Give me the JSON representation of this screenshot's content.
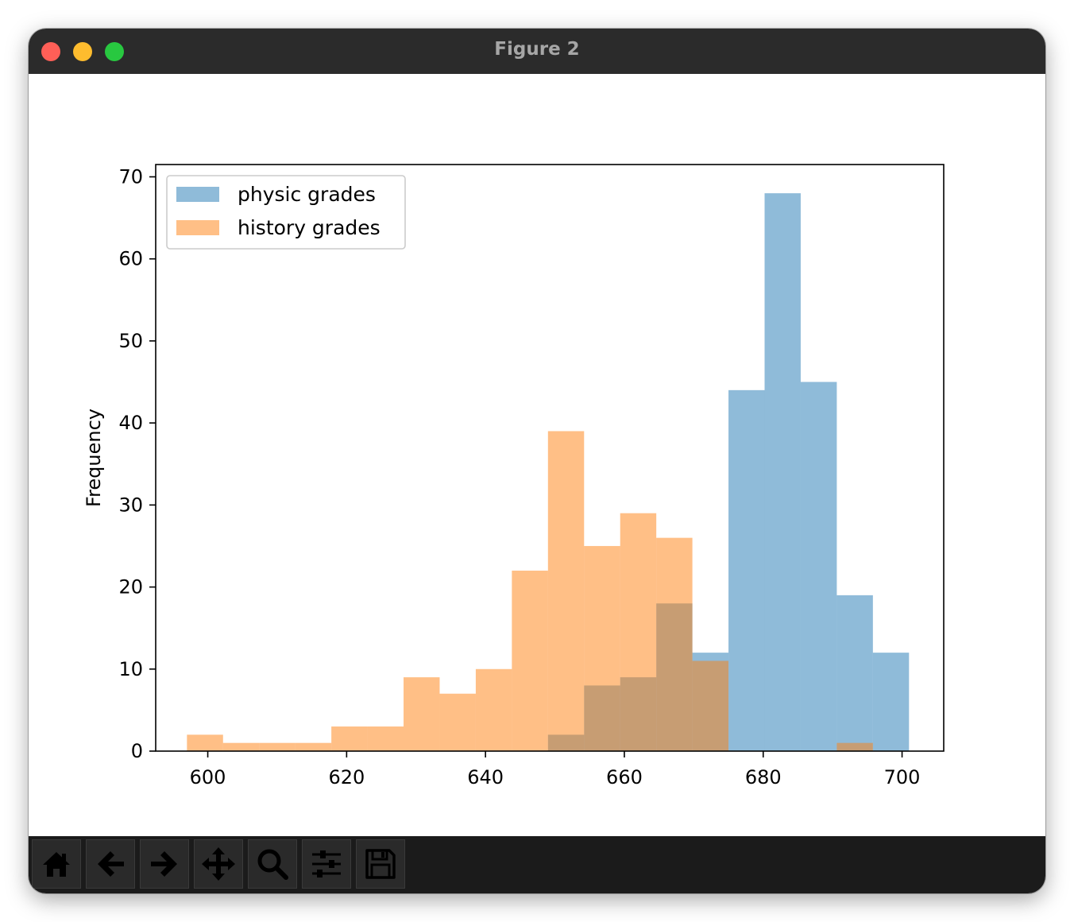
{
  "window": {
    "title": "Figure 2"
  },
  "toolbar": {
    "buttons": [
      {
        "name": "home-button",
        "icon": "home-icon"
      },
      {
        "name": "back-button",
        "icon": "arrow-left-icon"
      },
      {
        "name": "forward-button",
        "icon": "arrow-right-icon"
      },
      {
        "name": "pan-button",
        "icon": "move-icon"
      },
      {
        "name": "zoom-button",
        "icon": "search-icon"
      },
      {
        "name": "configure-subplots-button",
        "icon": "sliders-icon"
      },
      {
        "name": "save-button",
        "icon": "floppy-disk-icon"
      }
    ]
  },
  "chart_data": {
    "type": "histogram",
    "title": "",
    "xlabel": "",
    "ylabel": "Frequency",
    "xlim": [
      592.5,
      706
    ],
    "ylim": [
      0,
      71.5
    ],
    "xticks": [
      600,
      620,
      640,
      660,
      680,
      700
    ],
    "yticks": [
      0,
      10,
      20,
      30,
      40,
      50,
      60,
      70
    ],
    "legend_position": "upper-left",
    "series": [
      {
        "name": "physic grades",
        "color": "#1f77b4",
        "alpha": 0.5,
        "bins": [
          {
            "x0": 649.0,
            "x1": 654.2,
            "count": 2
          },
          {
            "x0": 654.2,
            "x1": 659.4,
            "count": 8
          },
          {
            "x0": 659.4,
            "x1": 664.6,
            "count": 9
          },
          {
            "x0": 664.6,
            "x1": 669.8,
            "count": 18
          },
          {
            "x0": 669.8,
            "x1": 675.0,
            "count": 12
          },
          {
            "x0": 675.0,
            "x1": 680.2,
            "count": 44
          },
          {
            "x0": 680.2,
            "x1": 685.4,
            "count": 68
          },
          {
            "x0": 685.4,
            "x1": 690.6,
            "count": 45
          },
          {
            "x0": 690.6,
            "x1": 695.8,
            "count": 19
          },
          {
            "x0": 695.8,
            "x1": 701.0,
            "count": 12
          }
        ]
      },
      {
        "name": "history grades",
        "color": "#ff7f0e",
        "alpha": 0.5,
        "bins": [
          {
            "x0": 597.0,
            "x1": 602.2,
            "count": 2
          },
          {
            "x0": 602.2,
            "x1": 607.4,
            "count": 1
          },
          {
            "x0": 607.4,
            "x1": 612.6,
            "count": 1
          },
          {
            "x0": 612.6,
            "x1": 617.8,
            "count": 1
          },
          {
            "x0": 617.8,
            "x1": 623.0,
            "count": 3
          },
          {
            "x0": 623.0,
            "x1": 628.2,
            "count": 3
          },
          {
            "x0": 628.2,
            "x1": 633.4,
            "count": 9
          },
          {
            "x0": 633.4,
            "x1": 638.6,
            "count": 7
          },
          {
            "x0": 638.6,
            "x1": 643.8,
            "count": 10
          },
          {
            "x0": 643.8,
            "x1": 649.0,
            "count": 22
          },
          {
            "x0": 649.0,
            "x1": 654.2,
            "count": 39
          },
          {
            "x0": 654.2,
            "x1": 659.4,
            "count": 25
          },
          {
            "x0": 659.4,
            "x1": 664.6,
            "count": 29
          },
          {
            "x0": 664.6,
            "x1": 669.8,
            "count": 26
          },
          {
            "x0": 669.8,
            "x1": 675.0,
            "count": 11
          },
          {
            "x0": 675.0,
            "x1": 680.2,
            "count": 0
          },
          {
            "x0": 680.2,
            "x1": 685.4,
            "count": 0
          },
          {
            "x0": 685.4,
            "x1": 690.6,
            "count": 0
          },
          {
            "x0": 690.6,
            "x1": 695.8,
            "count": 1
          }
        ]
      }
    ]
  }
}
